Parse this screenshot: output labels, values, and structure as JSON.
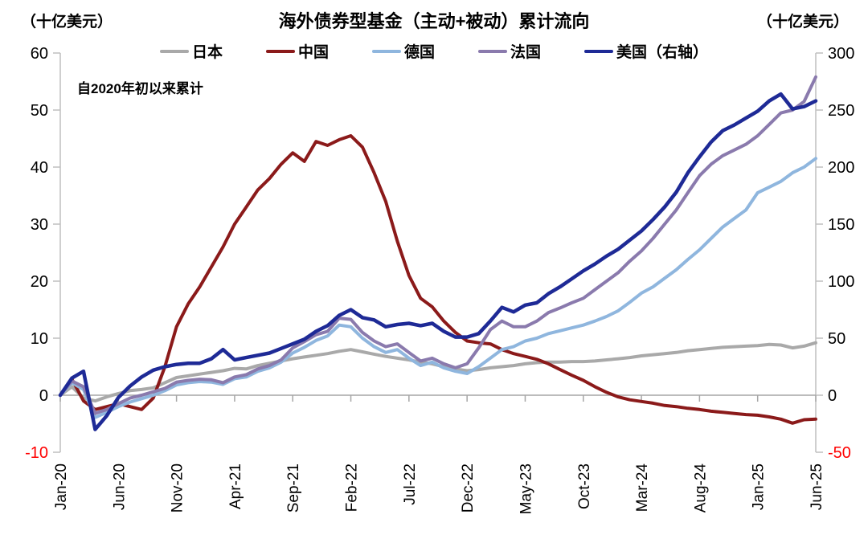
{
  "header": {
    "left_unit": "（十亿美元）",
    "title": "海外债券型基金（主动+被动）累计流向",
    "right_unit": "（十亿美元）"
  },
  "annotation": "自2020年初以来累计",
  "legend": [
    {
      "key": "japan",
      "label": "日本",
      "color": "#A9A9A9"
    },
    {
      "key": "china",
      "label": "中国",
      "color": "#8B1A1A"
    },
    {
      "key": "germany",
      "label": "德国",
      "color": "#8FB6DE"
    },
    {
      "key": "france",
      "label": "法国",
      "color": "#8A7AAD"
    },
    {
      "key": "usa",
      "label": "美国（右轴）",
      "color": "#1E2A96"
    }
  ],
  "colors": {
    "axis_line": "#BFBFBF",
    "zero_line": "#A6A6A6",
    "tick_mark": "#A6A6A6",
    "tick_text": "#000000",
    "negative_tick_text": "#FF0000"
  },
  "chart_data": {
    "type": "line",
    "title": "海外债券型基金（主动+被动）累计流向",
    "x_start": "Jan-20",
    "x_end": "Jun-25",
    "x_frequency": "monthly",
    "n_points": 66,
    "x_tick_positions": [
      0,
      5,
      10,
      15,
      20,
      25,
      30,
      35,
      40,
      45,
      50,
      55,
      60,
      65
    ],
    "x_tick_labels": [
      "Jan-20",
      "Jun-20",
      "Nov-20",
      "Apr-21",
      "Sep-21",
      "Feb-22",
      "Jul-22",
      "Dec-22",
      "May-23",
      "Oct-23",
      "Mar-24",
      "Aug-24",
      "Jan-25",
      "Jun-25"
    ],
    "left_axis": {
      "unit": "十亿美元",
      "min": -10,
      "max": 60,
      "ticks": [
        60,
        50,
        40,
        30,
        20,
        10,
        0,
        -10
      ]
    },
    "right_axis": {
      "unit": "十亿美元",
      "min": -50,
      "max": 300,
      "ticks": [
        300,
        250,
        200,
        150,
        100,
        50,
        0,
        -50
      ]
    },
    "zero_gridline": 0,
    "legend_position": "top",
    "series": [
      {
        "key": "japan",
        "name": "日本",
        "axis": "left",
        "color": "#A9A9A9",
        "values": [
          0,
          1.5,
          -0.5,
          -1.0,
          -0.3,
          0.3,
          0.8,
          1.0,
          1.3,
          2.2,
          3.1,
          3.4,
          3.7,
          4.0,
          4.3,
          4.7,
          4.6,
          5.2,
          5.6,
          6.0,
          6.4,
          6.7,
          7.0,
          7.3,
          7.7,
          8.0,
          7.6,
          7.2,
          6.8,
          6.5,
          6.2,
          5.8,
          5.5,
          5.0,
          4.6,
          4.3,
          4.5,
          4.8,
          5.0,
          5.2,
          5.5,
          5.7,
          5.8,
          5.8,
          5.9,
          5.9,
          6.0,
          6.2,
          6.4,
          6.6,
          6.9,
          7.1,
          7.3,
          7.5,
          7.8,
          8.0,
          8.2,
          8.4,
          8.5,
          8.6,
          8.7,
          8.9,
          8.8,
          8.3,
          8.6,
          9.2
        ]
      },
      {
        "key": "china",
        "name": "中国",
        "axis": "left",
        "color": "#8B1A1A",
        "values": [
          0,
          2.8,
          -1.0,
          -2.5,
          -2.0,
          -1.5,
          -2.0,
          -2.5,
          -0.5,
          5.0,
          12.0,
          16.0,
          19.0,
          22.5,
          26.0,
          30.0,
          33.0,
          36.0,
          38.0,
          40.5,
          42.5,
          41.0,
          44.5,
          43.8,
          44.8,
          45.5,
          43.5,
          39.0,
          34.0,
          27.0,
          21.0,
          17.0,
          15.5,
          13.0,
          11.0,
          9.5,
          9.2,
          9.0,
          8.0,
          7.3,
          6.8,
          6.3,
          5.5,
          4.5,
          3.5,
          2.6,
          1.5,
          0.5,
          -0.3,
          -0.8,
          -1.1,
          -1.4,
          -1.8,
          -2.0,
          -2.3,
          -2.5,
          -2.8,
          -3.0,
          -3.2,
          -3.4,
          -3.5,
          -3.8,
          -4.2,
          -4.9,
          -4.3,
          -4.2
        ]
      },
      {
        "key": "germany",
        "name": "德国",
        "axis": "left",
        "color": "#8FB6DE",
        "values": [
          0,
          2.2,
          1.0,
          -3.9,
          -3.0,
          -2.0,
          -1.2,
          -0.6,
          0.0,
          0.8,
          1.8,
          2.2,
          2.4,
          2.3,
          1.9,
          2.9,
          3.2,
          4.2,
          4.8,
          5.8,
          7.4,
          8.4,
          9.6,
          10.4,
          12.3,
          12.0,
          10.0,
          8.5,
          7.5,
          8.0,
          6.5,
          5.2,
          5.8,
          4.8,
          4.2,
          3.8,
          5.0,
          6.5,
          8.0,
          8.5,
          9.5,
          10.0,
          10.8,
          11.3,
          11.8,
          12.3,
          13.0,
          13.8,
          14.8,
          16.3,
          17.9,
          19.0,
          20.5,
          22.0,
          23.8,
          25.5,
          27.5,
          29.5,
          31.0,
          32.5,
          35.5,
          36.5,
          37.5,
          39.0,
          40.0,
          41.5
        ]
      },
      {
        "key": "france",
        "name": "法国",
        "axis": "left",
        "color": "#8A7AAD",
        "values": [
          0,
          2.5,
          1.5,
          -3.2,
          -2.5,
          -1.5,
          -0.5,
          0.0,
          0.6,
          1.2,
          2.3,
          2.6,
          2.8,
          2.7,
          2.2,
          3.2,
          3.6,
          4.6,
          5.2,
          6.2,
          8.3,
          9.4,
          10.6,
          11.2,
          13.5,
          13.3,
          11.0,
          9.5,
          8.5,
          9.0,
          7.5,
          6.0,
          6.5,
          5.5,
          4.8,
          5.5,
          8.3,
          11.5,
          13.0,
          12.0,
          12.0,
          13.0,
          14.5,
          15.3,
          16.2,
          17.0,
          18.5,
          20.0,
          21.5,
          23.5,
          25.3,
          27.5,
          30.0,
          32.5,
          35.5,
          38.5,
          40.5,
          42.0,
          43.0,
          44.0,
          45.5,
          47.5,
          49.5,
          50.0,
          51.5,
          55.8
        ]
      },
      {
        "key": "usa",
        "name": "美国（右轴）",
        "axis": "right",
        "color": "#1E2A96",
        "values": [
          0,
          15,
          21,
          -30,
          -18,
          -2,
          8,
          16,
          22,
          25,
          27,
          28,
          28,
          32,
          40,
          31,
          33,
          35,
          37,
          41,
          45,
          49,
          56,
          61,
          70,
          75,
          68,
          66,
          60,
          62,
          63,
          61,
          63,
          56,
          51,
          51,
          54,
          65,
          77,
          73,
          79,
          81,
          89,
          95,
          102,
          109,
          115,
          122,
          128,
          136,
          144,
          154,
          165,
          178,
          195,
          209,
          222,
          232,
          237,
          243,
          249,
          258,
          264,
          251,
          253,
          258
        ]
      }
    ]
  }
}
